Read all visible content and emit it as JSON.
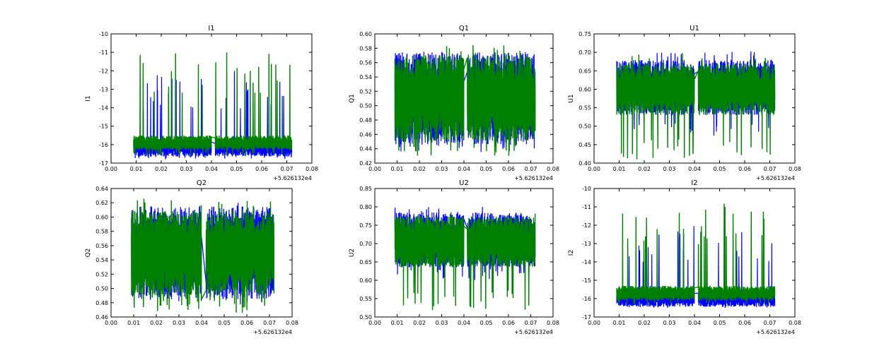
{
  "figure": {
    "background": "#ffffff",
    "x_offset_text": "+5.626132e4"
  },
  "colors": {
    "series_blue": "#0000ff",
    "series_green": "#008000",
    "axes": "#000000"
  },
  "chart_data": [
    {
      "type": "line",
      "title": "I1",
      "ylabel": "I1",
      "xlim": [
        0.0,
        0.08
      ],
      "ylim": [
        -17,
        -10
      ],
      "xticks": [
        "0.00",
        "0.01",
        "0.02",
        "0.03",
        "0.04",
        "0.05",
        "0.06",
        "0.07",
        "0.08"
      ],
      "yticks": [
        "-17",
        "-16",
        "-15",
        "-14",
        "-13",
        "-12",
        "-11",
        "-10"
      ],
      "x_range": [
        0.009,
        0.072
      ],
      "gap": [
        0.04,
        0.0415
      ],
      "series": [
        {
          "name": "blue",
          "color": "#0000ff",
          "base": -16.2,
          "spread": 0.45,
          "spikes": [
            -16.8,
            -12.0
          ]
        },
        {
          "name": "green",
          "color": "#008000",
          "base": -15.9,
          "spread": 0.4,
          "spikes": [
            -16.6,
            -10.9
          ]
        }
      ]
    },
    {
      "type": "line",
      "title": "Q1",
      "ylabel": "Q1",
      "xlim": [
        0.0,
        0.08
      ],
      "ylim": [
        0.42,
        0.6
      ],
      "xticks": [
        "0.00",
        "0.01",
        "0.02",
        "0.03",
        "0.04",
        "0.05",
        "0.06",
        "0.07",
        "0.08"
      ],
      "yticks": [
        "0.42",
        "0.44",
        "0.46",
        "0.48",
        "0.50",
        "0.52",
        "0.54",
        "0.56",
        "0.58",
        "0.60"
      ],
      "x_range": [
        0.009,
        0.072
      ],
      "gap": [
        0.04,
        0.0415
      ],
      "series": [
        {
          "name": "blue",
          "color": "#0000ff",
          "base": 0.51,
          "spread": 0.065,
          "spikes": [
            0.435,
            0.575
          ]
        },
        {
          "name": "green",
          "color": "#008000",
          "base": 0.51,
          "spread": 0.06,
          "spikes": [
            0.43,
            0.585
          ]
        }
      ]
    },
    {
      "type": "line",
      "title": "U1",
      "ylabel": "U1",
      "xlim": [
        0.0,
        0.08
      ],
      "ylim": [
        0.4,
        0.75
      ],
      "xticks": [
        "0.00",
        "0.01",
        "0.02",
        "0.03",
        "0.04",
        "0.05",
        "0.06",
        "0.07",
        "0.08"
      ],
      "yticks": [
        "0.40",
        "0.45",
        "0.50",
        "0.55",
        "0.60",
        "0.65",
        "0.70",
        "0.75"
      ],
      "x_range": [
        0.009,
        0.072
      ],
      "gap": [
        0.04,
        0.0415
      ],
      "series": [
        {
          "name": "blue",
          "color": "#0000ff",
          "base": 0.605,
          "spread": 0.075,
          "spikes": [
            0.47,
            0.705
          ]
        },
        {
          "name": "green",
          "color": "#008000",
          "base": 0.6,
          "spread": 0.07,
          "spikes": [
            0.41,
            0.7
          ]
        }
      ]
    },
    {
      "type": "line",
      "title": "Q2",
      "ylabel": "Q2",
      "xlim": [
        0.0,
        0.08
      ],
      "ylim": [
        0.46,
        0.64
      ],
      "xticks": [
        "0.00",
        "0.01",
        "0.02",
        "0.03",
        "0.04",
        "0.05",
        "0.06",
        "0.07",
        "0.08"
      ],
      "yticks": [
        "0.46",
        "0.48",
        "0.50",
        "0.52",
        "0.54",
        "0.56",
        "0.58",
        "0.60",
        "0.62",
        "0.64"
      ],
      "x_range": [
        0.009,
        0.072
      ],
      "gap": [
        0.04,
        0.042
      ],
      "series": [
        {
          "name": "blue",
          "color": "#0000ff",
          "base": 0.55,
          "spread": 0.065,
          "spikes": [
            0.475,
            0.625
          ]
        },
        {
          "name": "green",
          "color": "#008000",
          "base": 0.55,
          "spread": 0.06,
          "spikes": [
            0.465,
            0.63
          ]
        }
      ]
    },
    {
      "type": "line",
      "title": "U2",
      "ylabel": "U2",
      "xlim": [
        0.0,
        0.08
      ],
      "ylim": [
        0.5,
        0.85
      ],
      "xticks": [
        "0.00",
        "0.01",
        "0.02",
        "0.03",
        "0.04",
        "0.05",
        "0.06",
        "0.07",
        "0.08"
      ],
      "yticks": [
        "0.50",
        "0.55",
        "0.60",
        "0.65",
        "0.70",
        "0.75",
        "0.80",
        "0.85"
      ],
      "x_range": [
        0.009,
        0.072
      ],
      "gap": [
        0.04,
        0.0415
      ],
      "series": [
        {
          "name": "blue",
          "color": "#0000ff",
          "base": 0.71,
          "spread": 0.075,
          "spikes": [
            0.6,
            0.8
          ]
        },
        {
          "name": "green",
          "color": "#008000",
          "base": 0.705,
          "spread": 0.07,
          "spikes": [
            0.515,
            0.795
          ]
        }
      ]
    },
    {
      "type": "line",
      "title": "I2",
      "ylabel": "I2",
      "xlim": [
        0.0,
        0.08
      ],
      "ylim": [
        -17,
        -10
      ],
      "xticks": [
        "0.00",
        "0.01",
        "0.02",
        "0.03",
        "0.04",
        "0.05",
        "0.06",
        "0.07",
        "0.08"
      ],
      "yticks": [
        "-17",
        "-16",
        "-15",
        "-14",
        "-13",
        "-12",
        "-11",
        "-10"
      ],
      "x_range": [
        0.009,
        0.072
      ],
      "gap": [
        0.04,
        0.0415
      ],
      "series": [
        {
          "name": "blue",
          "color": "#0000ff",
          "base": -16.0,
          "spread": 0.45,
          "spikes": [
            -16.5,
            -12.0
          ]
        },
        {
          "name": "green",
          "color": "#008000",
          "base": -15.7,
          "spread": 0.4,
          "spikes": [
            -16.3,
            -10.6
          ]
        }
      ]
    }
  ]
}
